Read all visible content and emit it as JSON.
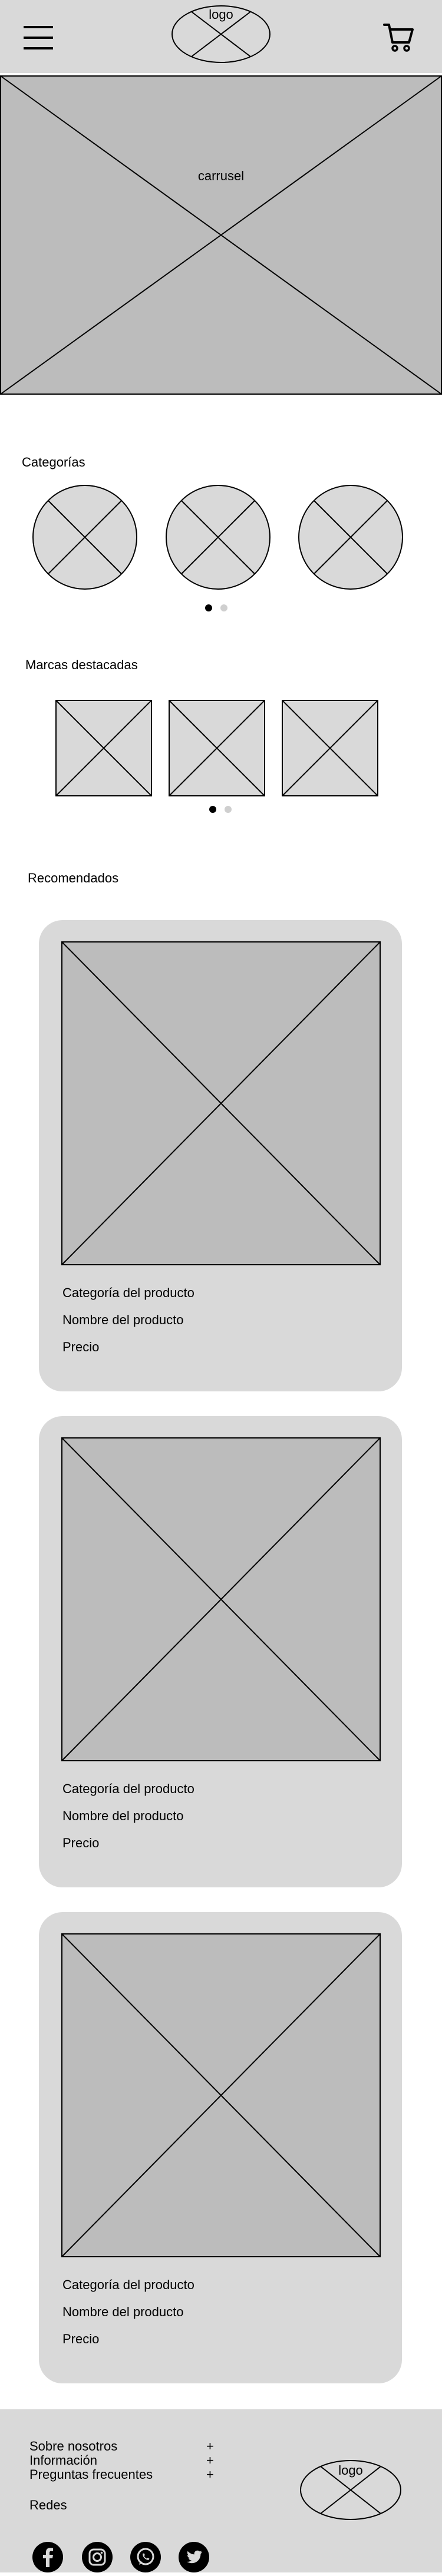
{
  "header": {
    "logo_text": "logo",
    "menu_icon": "hamburger-menu-icon",
    "cart_icon": "shopping-cart-icon"
  },
  "carousel": {
    "label": "carrusel"
  },
  "categories": {
    "title": "Categorías",
    "items": 3,
    "pagination": {
      "pages": 2,
      "active": 1
    }
  },
  "brands": {
    "title": "Marcas destacadas",
    "items": 3,
    "pagination": {
      "pages": 2,
      "active": 1
    }
  },
  "recommended": {
    "title": "Recomendados",
    "products": [
      {
        "category": "Categoría del producto",
        "name": "Nombre del producto",
        "price": "Precio"
      },
      {
        "category": "Categoría del producto",
        "name": "Nombre del producto",
        "price": "Precio"
      },
      {
        "category": "Categoría del producto",
        "name": "Nombre del producto",
        "price": "Precio"
      }
    ]
  },
  "footer": {
    "links": [
      {
        "label": "Sobre nosotros",
        "toggle": "+"
      },
      {
        "label": "Información",
        "toggle": "+"
      },
      {
        "label": "Preguntas frecuentes",
        "toggle": "+"
      }
    ],
    "social_title": "Redes",
    "social_icons": [
      "facebook-icon",
      "instagram-icon",
      "whatsapp-icon",
      "twitter-icon"
    ],
    "logo_text": "logo"
  },
  "colors": {
    "panel": "#d9d9d9",
    "placeholder": "#bcbcbc",
    "light_placeholder": "#d9d9d9",
    "dot_inactive": "#cfcfcf"
  }
}
